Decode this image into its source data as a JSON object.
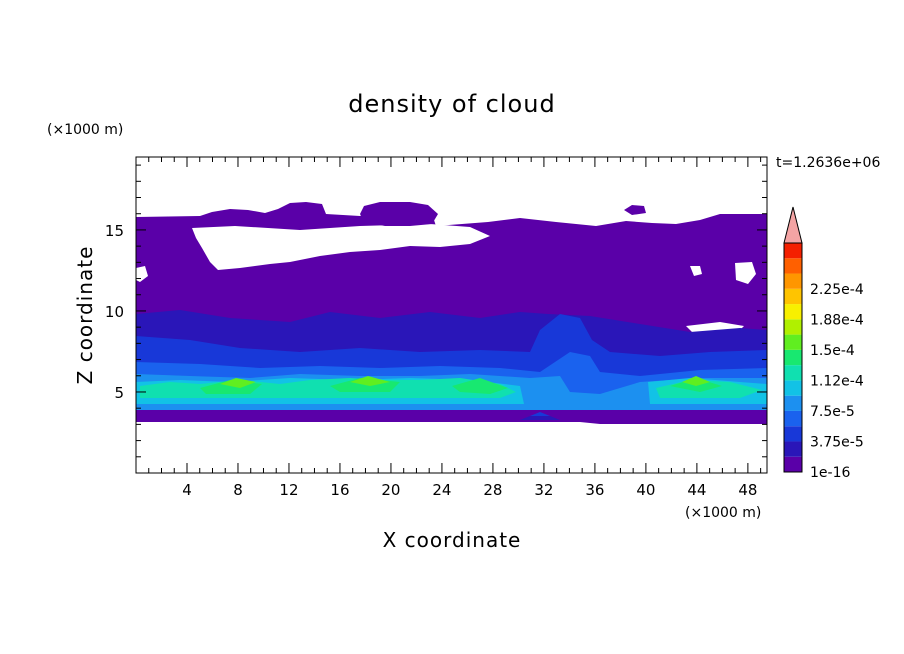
{
  "chart_data": {
    "type": "heatmap",
    "title": "density of cloud",
    "xlabel": "X coordinate",
    "ylabel": "Z coordinate",
    "x_unit": "(×1000 m)",
    "y_unit": "(×1000 m)",
    "time_label": "t=1.2636e+06",
    "xlim": [
      0,
      49.5
    ],
    "ylim": [
      0,
      19.5
    ],
    "xticks": [
      4,
      8,
      12,
      16,
      20,
      24,
      28,
      32,
      36,
      40,
      44,
      48
    ],
    "xtick_labels": [
      "4",
      "8",
      "12",
      "16",
      "20",
      "24",
      "28",
      "32",
      "36",
      "40",
      "44",
      "48"
    ],
    "yticks": [
      5,
      10,
      15
    ],
    "ytick_labels": [
      "5",
      "10",
      "15"
    ],
    "colorbar": {
      "levels": [
        "1e-16",
        "3.75e-5",
        "7.5e-5",
        "1.12e-4",
        "1.5e-4",
        "1.88e-4",
        "2.25e-4"
      ],
      "min": 1e-16,
      "max": 0.0002625,
      "extend": "max",
      "colors": [
        "#5a00a8",
        "#2a16b8",
        "#1838d8",
        "#1a62ee",
        "#1c90f0",
        "#12c2e6",
        "#10e0b0",
        "#18e870",
        "#60ee20",
        "#b0f000",
        "#f8f000",
        "#ffc400",
        "#ff9600",
        "#ff6000",
        "#f42000",
        "#f4a4a4"
      ]
    },
    "cloud_layers": [
      {
        "x": [
          0,
          49.5
        ],
        "z": [
          3.3,
          16.2
        ],
        "level": 0
      },
      {
        "x": [
          0,
          49.5
        ],
        "z": [
          4.0,
          9.8
        ],
        "level": 2
      },
      {
        "x": [
          0,
          49.5
        ],
        "z": [
          4.4,
          6.6
        ],
        "level": 5
      },
      {
        "x": [
          0.5,
          30
        ],
        "z": [
          4.6,
          6.0
        ],
        "level": 7
      },
      {
        "x": [
          41,
          49
        ],
        "z": [
          4.6,
          6.0
        ],
        "level": 7
      },
      {
        "x": [
          7,
          10
        ],
        "z": [
          5.4,
          5.9
        ],
        "level": 9
      },
      {
        "x": [
          17,
          21
        ],
        "z": [
          5.4,
          5.9
        ],
        "level": 9
      },
      {
        "x": [
          43,
          45
        ],
        "z": [
          5.4,
          5.9
        ],
        "level": 9
      }
    ]
  }
}
